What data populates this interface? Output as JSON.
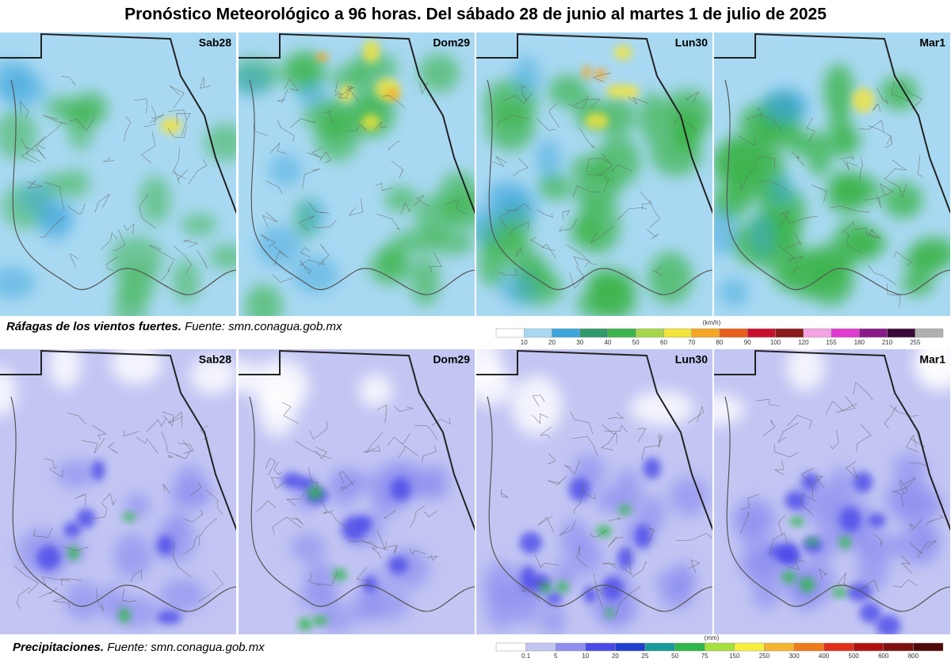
{
  "title": "Pronóstico Meteorológico a 96 horas. Del sábado 28 de junio al martes 1 de julio de 2025",
  "wind": {
    "panels": [
      "Sab28",
      "Dom29",
      "Lun30",
      "Mar1"
    ],
    "caption_bold": "Ráfagas de los vientos fuertes.",
    "caption_source": "Fuente: smn.conagua.gob.mx",
    "legend": {
      "unit": "(km/h)",
      "labels": [
        10,
        20,
        30,
        40,
        50,
        60,
        70,
        80,
        90,
        100,
        120,
        155,
        180,
        210,
        255
      ],
      "colors": [
        "#ffffff",
        "#a9d9f2",
        "#3ea6dc",
        "#2f9a6a",
        "#3cb44b",
        "#a6d64a",
        "#f2e43b",
        "#f5a623",
        "#e8601c",
        "#c8102e",
        "#8b1a1a",
        "#f4a3e3",
        "#e03ad0",
        "#8b1a8b",
        "#3a0a3a",
        "#b0b0b0"
      ]
    }
  },
  "precipitation": {
    "panels": [
      "Sab28",
      "Dom29",
      "Lun30",
      "Mar1"
    ],
    "caption_bold": "Precipitaciones.",
    "caption_source": "Fuente: smn.conagua.gob.mx",
    "legend": {
      "unit": "(mm)",
      "labels": [
        0.1,
        5,
        10,
        20,
        25,
        50,
        75,
        150,
        250,
        300,
        400,
        500,
        600,
        800
      ],
      "colors": [
        "#ffffff",
        "#c3c6f3",
        "#8e8ff0",
        "#4a4ae8",
        "#1f3fd0",
        "#1a9a9a",
        "#2fb84a",
        "#a6e03a",
        "#f5f03a",
        "#f5b52a",
        "#f07a1a",
        "#e0301a",
        "#b01010",
        "#801010",
        "#500808"
      ]
    }
  }
}
